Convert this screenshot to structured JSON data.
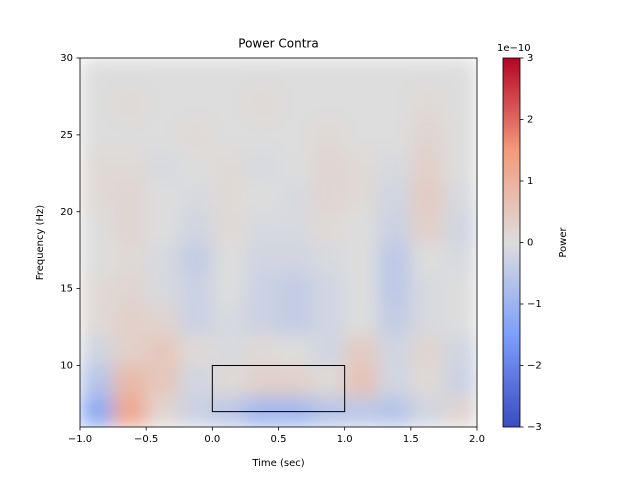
{
  "chart_data": {
    "type": "heatmap",
    "title": "Power Contra",
    "x_label": "Time (sec)",
    "y_label": "Frequency (Hz)",
    "xlim": [
      -1,
      2
    ],
    "ylim": [
      6,
      30
    ],
    "xticks": [
      {
        "value": -1,
        "label": "−1.0"
      },
      {
        "value": -0.5,
        "label": "−0.5"
      },
      {
        "value": 0,
        "label": "0.0"
      },
      {
        "value": 0.5,
        "label": "0.5"
      },
      {
        "value": 1,
        "label": "1.0"
      },
      {
        "value": 1.5,
        "label": "1.5"
      },
      {
        "value": 2,
        "label": "2.0"
      }
    ],
    "yticks": [
      10,
      15,
      20,
      25,
      30
    ],
    "xbins": [
      -1,
      -0.75,
      -0.5,
      -0.25,
      0,
      0.25,
      0.5,
      0.75,
      1,
      1.25,
      1.5,
      1.75,
      2
    ],
    "ybins": [
      6,
      8,
      10,
      12,
      14,
      16,
      18,
      20,
      22,
      24,
      26,
      28,
      30
    ],
    "z": [
      [
        -1.2,
        1.2,
        0.2,
        -0.3,
        -0.5,
        -0.9,
        -0.9,
        -0.6,
        -0.5,
        -0.6,
        -0.2,
        0.2
      ],
      [
        -0.6,
        0.8,
        0.5,
        -0.2,
        0.1,
        0.3,
        0.3,
        0.1,
        0.6,
        -0.2,
        0.1,
        -0.3
      ],
      [
        -0.2,
        0.3,
        0.5,
        0.1,
        -0.1,
        0.1,
        0.0,
        -0.2,
        0.4,
        -0.2,
        0.2,
        -0.2
      ],
      [
        0.1,
        0.3,
        0.2,
        -0.3,
        -0.1,
        -0.3,
        -0.4,
        -0.2,
        0.0,
        -0.4,
        -0.1,
        0.0
      ],
      [
        0.1,
        0.2,
        -0.1,
        -0.3,
        0.0,
        -0.3,
        -0.4,
        -0.2,
        0.0,
        -0.5,
        -0.1,
        0.0
      ],
      [
        0.0,
        0.1,
        -0.1,
        -0.4,
        0.0,
        -0.2,
        -0.2,
        -0.1,
        0.0,
        -0.5,
        0.0,
        -0.1
      ],
      [
        0.0,
        0.2,
        0.0,
        -0.2,
        0.1,
        -0.1,
        -0.1,
        0.1,
        0.0,
        -0.3,
        0.3,
        -0.2
      ],
      [
        0.1,
        0.2,
        0.0,
        -0.1,
        0.1,
        0.0,
        -0.1,
        0.2,
        0.1,
        -0.2,
        0.4,
        -0.1
      ],
      [
        0.1,
        0.1,
        -0.1,
        0.0,
        0.1,
        -0.1,
        0.0,
        0.2,
        0.1,
        -0.1,
        0.3,
        0.0
      ],
      [
        0.0,
        0.0,
        0.0,
        0.1,
        0.0,
        0.0,
        0.0,
        0.1,
        0.0,
        0.0,
        0.2,
        0.0
      ],
      [
        0.0,
        0.1,
        0.0,
        0.0,
        0.0,
        0.1,
        0.0,
        0.0,
        0.0,
        0.0,
        0.1,
        0.0
      ],
      [
        0.0,
        0.0,
        0.0,
        0.0,
        0.0,
        0.0,
        0.0,
        0.0,
        0.0,
        0.0,
        0.0,
        0.0
      ]
    ],
    "colormap": "coolwarm",
    "rectangle": {
      "x": [
        0,
        1
      ],
      "y": [
        7,
        10
      ]
    },
    "colorbar": {
      "label": "Power",
      "offset_label": "1e−10",
      "lim": [
        -3,
        3
      ],
      "ticks": [
        {
          "value": -3,
          "label": "−3"
        },
        {
          "value": -2,
          "label": "−2"
        },
        {
          "value": -1,
          "label": "−1"
        },
        0,
        1,
        2,
        3
      ]
    }
  }
}
